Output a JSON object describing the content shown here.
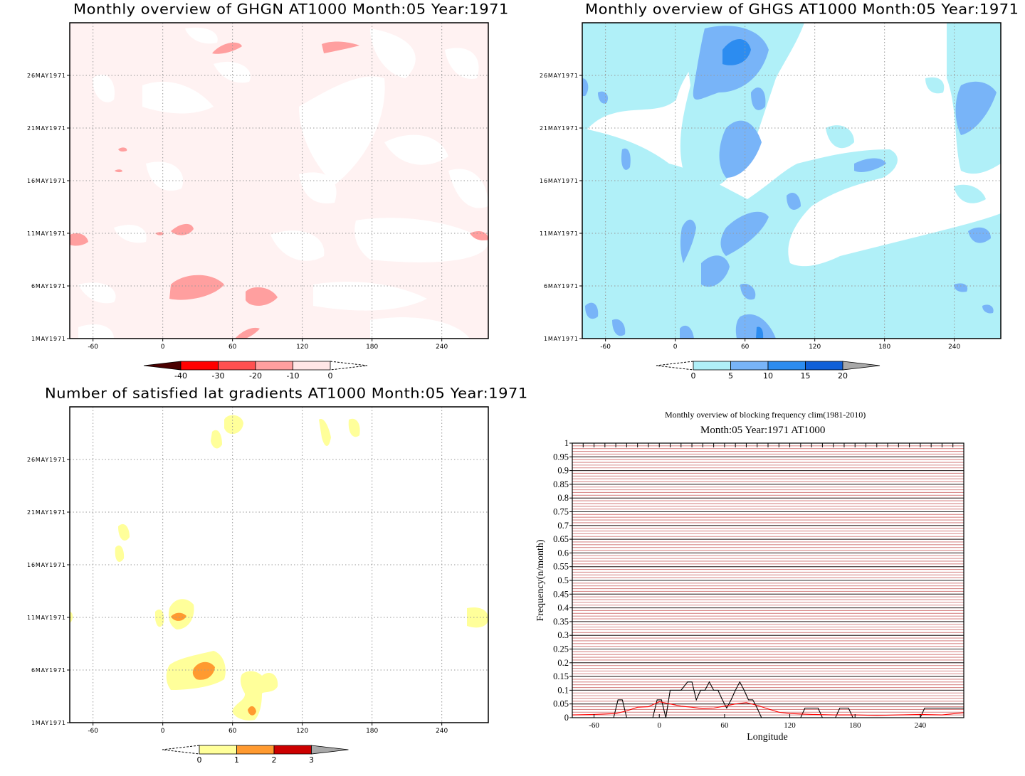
{
  "panels": {
    "ghgn": {
      "title": "Monthly overview of GHGN AT1000 Month:05 Year:1971"
    },
    "ghgs": {
      "title": "Monthly overview of GHGS AT1000 Month:05 Year:1971"
    },
    "nsat": {
      "title": "Number of satisfied lat gradients AT1000 Month:05 Year:1971"
    },
    "freq": {
      "title": "Monthly overview of blocking frequency clim(1981-2010)",
      "subtitle": "Month:05 Year:1971  AT1000"
    }
  },
  "chart_data": [
    {
      "type": "heatmap",
      "title": "Monthly overview of GHGN AT1000 Month:05 Year:1971",
      "x_ticks": [
        "-60",
        "0",
        "60",
        "120",
        "180",
        "240"
      ],
      "xlim": [
        -80,
        280
      ],
      "y_ticks": [
        "1MAY1971",
        "6MAY1971",
        "11MAY1971",
        "16MAY1971",
        "21MAY1971",
        "26MAY1971"
      ],
      "ylim": [
        1,
        31
      ],
      "grid": true,
      "colorbar": {
        "labels": [
          "-40",
          "-30",
          "-20",
          "-10",
          "0"
        ],
        "colors": [
          "#ff0000",
          "#ff5050",
          "#ff9f9f",
          "#ffe6e6"
        ]
      }
    },
    {
      "type": "heatmap",
      "title": "Monthly overview of GHGS AT1000 Month:05 Year:1971",
      "x_ticks": [
        "-60",
        "0",
        "60",
        "120",
        "180",
        "240"
      ],
      "xlim": [
        -80,
        280
      ],
      "y_ticks": [
        "1MAY1971",
        "6MAY1971",
        "11MAY1971",
        "16MAY1971",
        "21MAY1971",
        "26MAY1971"
      ],
      "ylim": [
        1,
        31
      ],
      "grid": true,
      "colorbar": {
        "labels": [
          "0",
          "5",
          "10",
          "15",
          "20"
        ],
        "colors": [
          "#b0f0f8",
          "#78b4f8",
          "#2c8cf0",
          "#1060d8"
        ]
      }
    },
    {
      "type": "heatmap",
      "title": "Number of satisfied lat gradients AT1000 Month:05 Year:1971",
      "x_ticks": [
        "-60",
        "0",
        "60",
        "120",
        "180",
        "240"
      ],
      "xlim": [
        -80,
        280
      ],
      "y_ticks": [
        "1MAY1971",
        "6MAY1971",
        "11MAY1971",
        "16MAY1971",
        "21MAY1971",
        "26MAY1971"
      ],
      "ylim": [
        1,
        31
      ],
      "grid": true,
      "colorbar": {
        "labels": [
          "0",
          "1",
          "2",
          "3"
        ],
        "colors": [
          "#ffff9a",
          "#ff9a30",
          "#cc0000"
        ]
      }
    },
    {
      "type": "line",
      "title": "Monthly overview of blocking frequency clim(1981-2010)",
      "subtitle": "Month:05 Year:1971  AT1000",
      "xlabel": "Longitude",
      "ylabel": "Frequency(n/month)",
      "x_ticks": [
        "-60",
        "0",
        "60",
        "120",
        "180",
        "240"
      ],
      "y_ticks": [
        "0",
        "0.05",
        "0.1",
        "0.15",
        "0.2",
        "0.25",
        "0.3",
        "0.35",
        "0.4",
        "0.45",
        "0.5",
        "0.55",
        "0.6",
        "0.65",
        "0.7",
        "0.75",
        "0.8",
        "0.85",
        "0.9",
        "0.95",
        "1"
      ],
      "xlim": [
        -80,
        280
      ],
      "ylim": [
        0,
        1
      ],
      "series": [
        {
          "color": "#000000",
          "x": [
            -80,
            -42,
            -38,
            -34,
            -30,
            -6,
            -2,
            2,
            6,
            10,
            20,
            26,
            30,
            34,
            38,
            42,
            46,
            50,
            54,
            58,
            62,
            66,
            70,
            74,
            78,
            82,
            86,
            90,
            94,
            98,
            102,
            130,
            134,
            146,
            150,
            162,
            166,
            174,
            178,
            240,
            244,
            280
          ],
          "y": [
            0,
            0,
            0.065,
            0.065,
            0,
            0,
            0.065,
            0.065,
            0,
            0.1,
            0.1,
            0.13,
            0.13,
            0.065,
            0.1,
            0.1,
            0.13,
            0.1,
            0.1,
            0.065,
            0.035,
            0.065,
            0.1,
            0.13,
            0.1,
            0.065,
            0.065,
            0.035,
            0,
            0,
            0,
            0,
            0.035,
            0.035,
            0,
            0,
            0.035,
            0.035,
            0,
            0,
            0.035,
            0.035
          ]
        },
        {
          "color": "#ff0000",
          "x": [
            -80,
            -60,
            -40,
            -30,
            -20,
            -10,
            0,
            10,
            20,
            30,
            40,
            50,
            60,
            70,
            80,
            90,
            100,
            110,
            120,
            140,
            160,
            180,
            200,
            220,
            240,
            260,
            280
          ],
          "y": [
            0.01,
            0.012,
            0.015,
            0.025,
            0.038,
            0.04,
            0.058,
            0.05,
            0.042,
            0.038,
            0.033,
            0.035,
            0.042,
            0.05,
            0.055,
            0.045,
            0.032,
            0.02,
            0.015,
            0.012,
            0.01,
            0.01,
            0.008,
            0.01,
            0.012,
            0.01,
            0.018
          ]
        }
      ],
      "grid": true
    }
  ]
}
